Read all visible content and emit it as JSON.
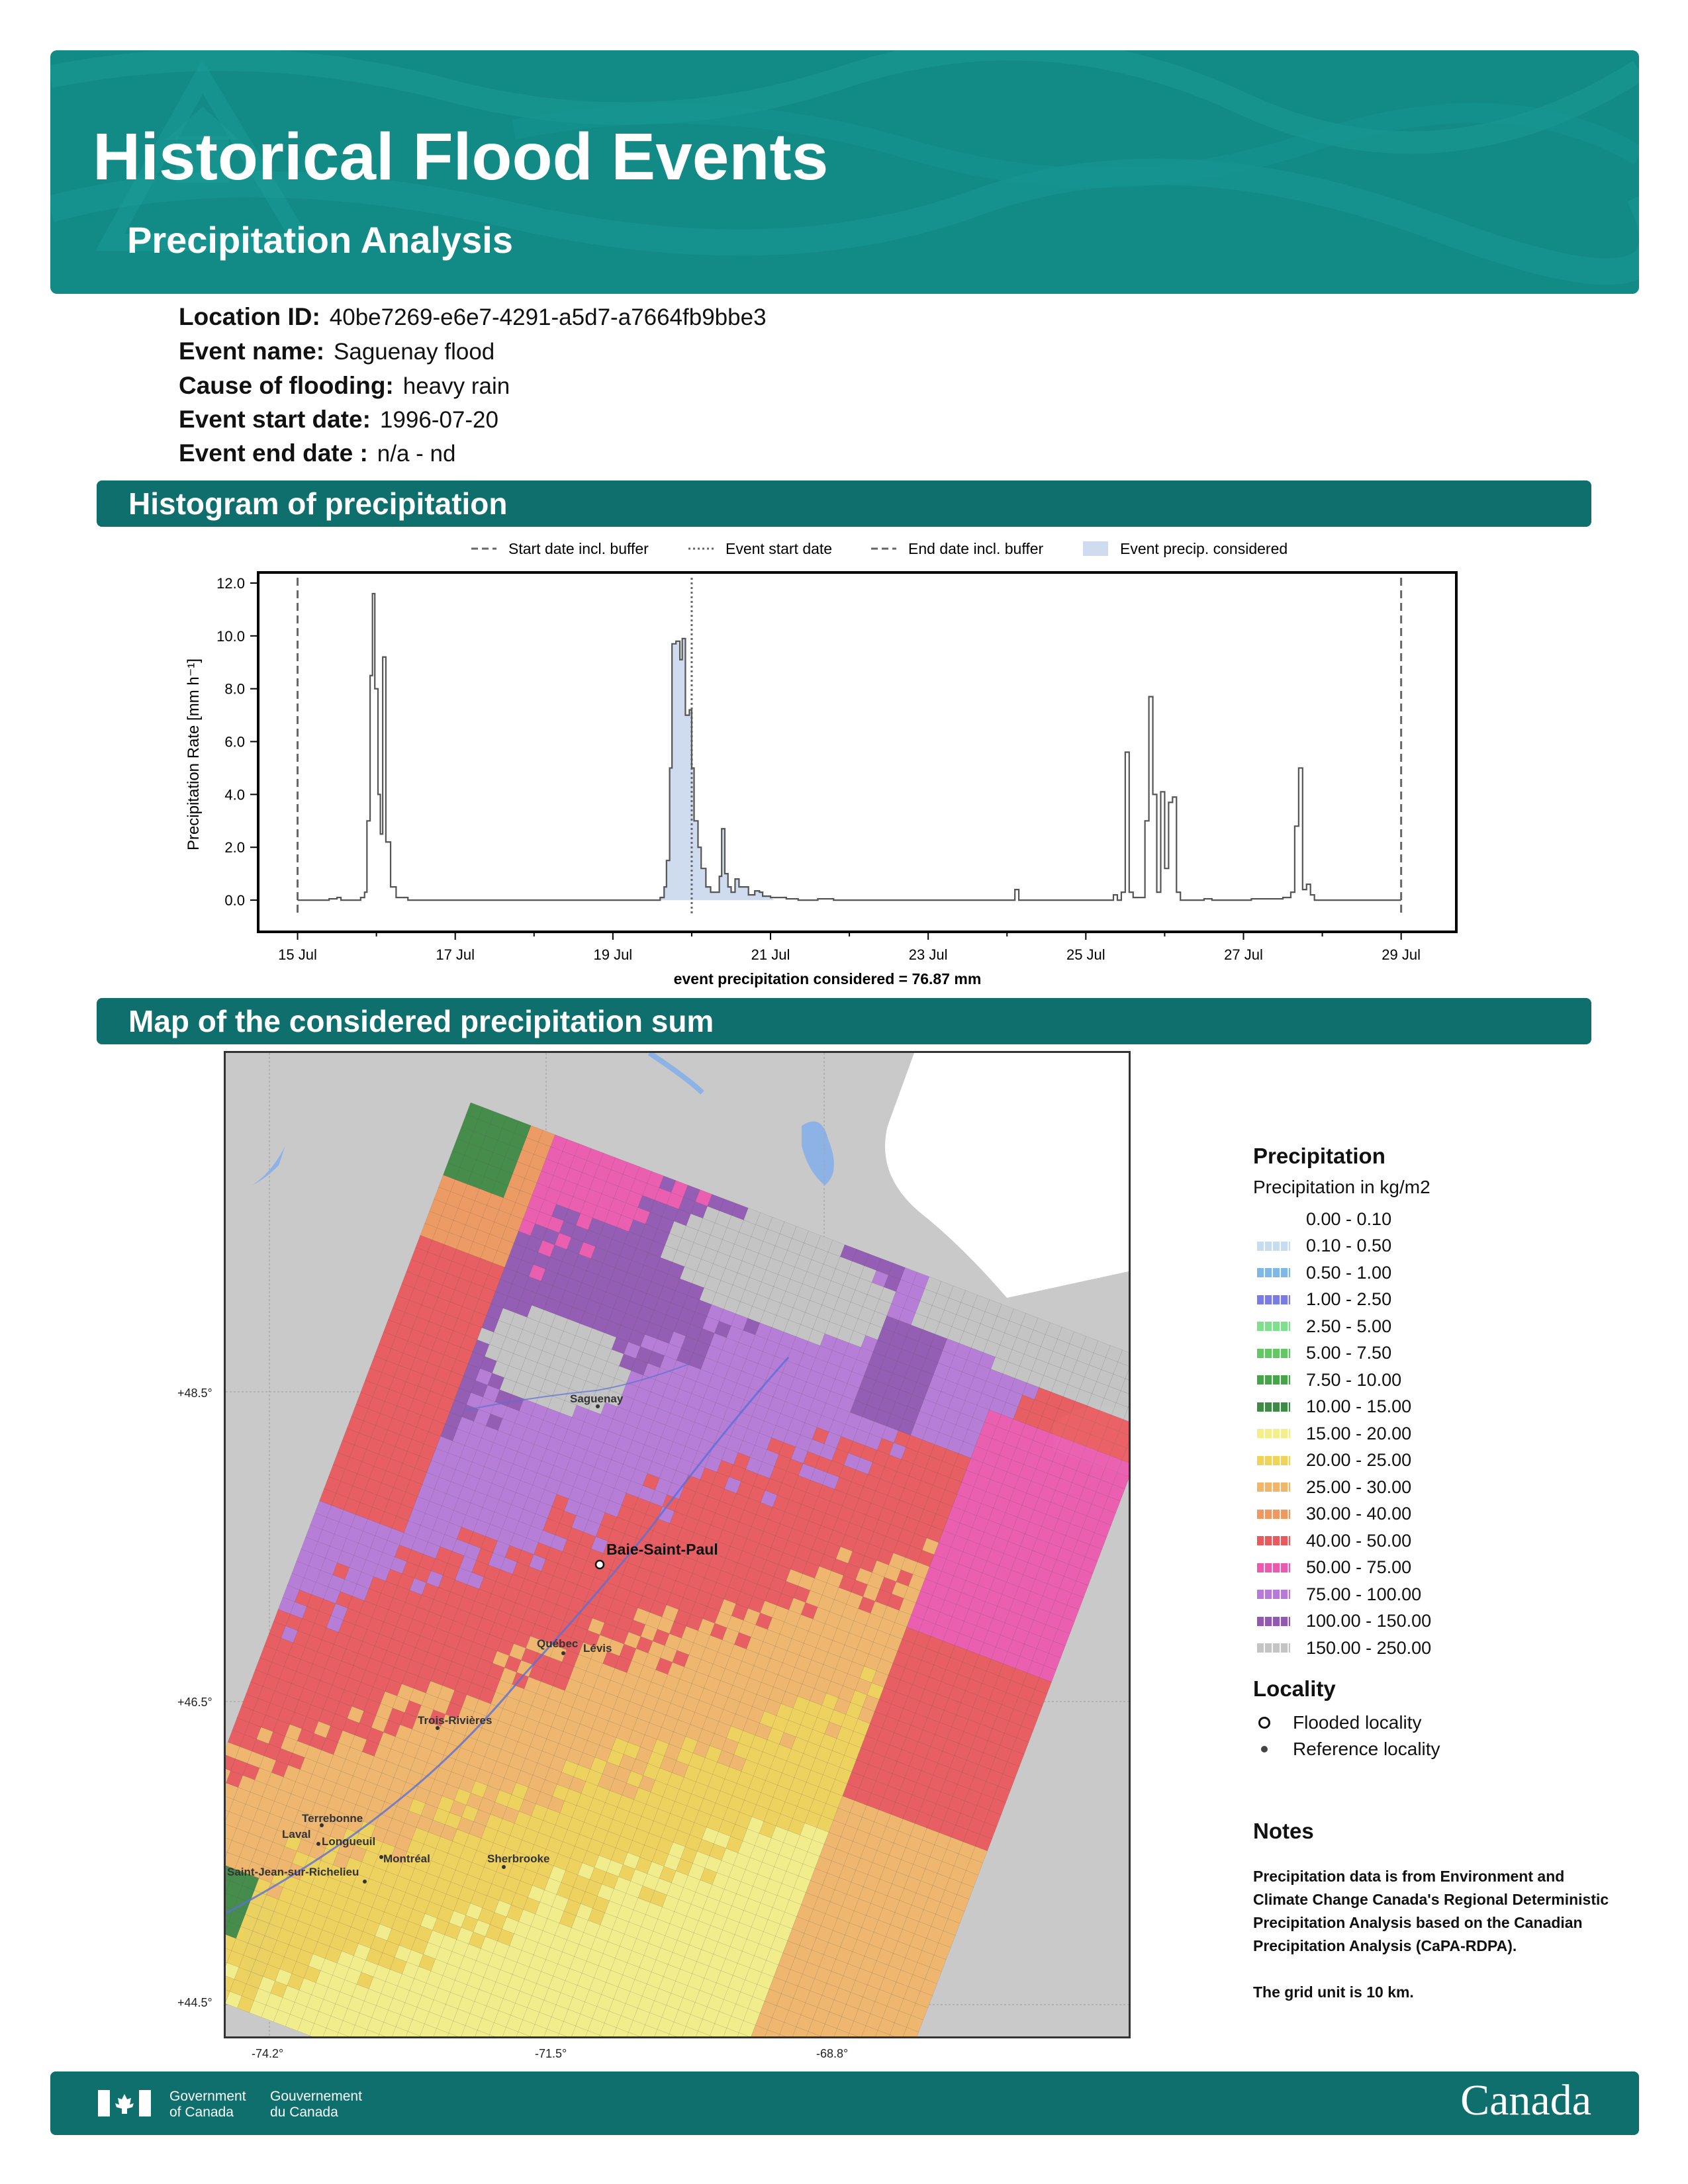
{
  "header": {
    "title": "Historical Flood Events",
    "subtitle": "Precipitation Analysis"
  },
  "event_info": [
    {
      "label": "Location ID:",
      "value": "40be7269-e6e7-4291-a5d7-a7664fb9bbe3"
    },
    {
      "label": "Event name:",
      "value": "Saguenay flood"
    },
    {
      "label": "Cause of flooding:",
      "value": "heavy rain"
    },
    {
      "label": "Event start date:",
      "value": "1996-07-20"
    },
    {
      "label": "Event end date :",
      "value": "n/a - nd"
    }
  ],
  "sections": {
    "histogram": "Histogram of precipitation",
    "map": "Map of the considered precipitation sum"
  },
  "chart_data": {
    "type": "area",
    "ylabel": "Precipitation Rate [mm h⁻¹]",
    "xlabel": "event precipitation considered = 76.87 mm",
    "ylim": [
      -1.2,
      12.4
    ],
    "y_ticks": [
      "0.0",
      "2.0",
      "4.0",
      "6.0",
      "8.0",
      "10.0",
      "12.0"
    ],
    "x_ticks": [
      "15 Jul",
      "17 Jul",
      "19 Jul",
      "21 Jul",
      "23 Jul",
      "25 Jul",
      "27 Jul",
      "29 Jul"
    ],
    "x_range_days": [
      14.5,
      29.7
    ],
    "legend": {
      "placement": "top",
      "entries": [
        "Start date incl. buffer",
        "Event start date",
        "End date incl. buffer",
        "Event precip. considered"
      ]
    },
    "markers": {
      "start_buffer": "1996-07-15",
      "event_start": "1996-07-20",
      "end_buffer": "1996-07-29"
    },
    "series": [
      {
        "values_by_day": [
          [
            15.0,
            0.0
          ],
          [
            15.4,
            0.05
          ],
          [
            15.5,
            0.1
          ],
          [
            15.55,
            0.0
          ],
          [
            15.8,
            0.1
          ],
          [
            15.85,
            0.3
          ],
          [
            15.88,
            3.0
          ],
          [
            15.92,
            8.5
          ],
          [
            15.95,
            11.6
          ],
          [
            15.98,
            8.0
          ],
          [
            16.02,
            4.0
          ],
          [
            16.05,
            2.5
          ],
          [
            16.08,
            9.2
          ],
          [
            16.12,
            2.2
          ],
          [
            16.18,
            0.5
          ],
          [
            16.25,
            0.1
          ],
          [
            16.4,
            0.0
          ],
          [
            19.6,
            0.1
          ],
          [
            19.65,
            0.5
          ],
          [
            19.68,
            1.5
          ],
          [
            19.72,
            5.0
          ],
          [
            19.75,
            9.7
          ],
          [
            19.8,
            9.8
          ],
          [
            19.85,
            9.1
          ],
          [
            19.88,
            9.9
          ],
          [
            19.92,
            7.0
          ],
          [
            19.97,
            7.2
          ],
          [
            20.0,
            5.0
          ],
          [
            20.03,
            3.0
          ],
          [
            20.08,
            2.0
          ],
          [
            20.12,
            1.2
          ],
          [
            20.18,
            0.5
          ],
          [
            20.24,
            0.3
          ],
          [
            20.3,
            0.3
          ],
          [
            20.35,
            0.9
          ],
          [
            20.38,
            2.7
          ],
          [
            20.42,
            1.0
          ],
          [
            20.46,
            0.5
          ],
          [
            20.5,
            0.3
          ],
          [
            20.55,
            0.8
          ],
          [
            20.6,
            0.5
          ],
          [
            20.66,
            0.5
          ],
          [
            20.72,
            0.2
          ],
          [
            20.8,
            0.35
          ],
          [
            20.86,
            0.3
          ],
          [
            20.9,
            0.15
          ],
          [
            21.0,
            0.1
          ],
          [
            21.2,
            0.05
          ],
          [
            21.35,
            0.0
          ],
          [
            21.6,
            0.05
          ],
          [
            21.8,
            0.0
          ],
          [
            22.0,
            0.0
          ],
          [
            24.05,
            0.0
          ],
          [
            24.1,
            0.4
          ],
          [
            24.15,
            0.0
          ],
          [
            25.3,
            0.0
          ],
          [
            25.35,
            0.2
          ],
          [
            25.4,
            0.0
          ],
          [
            25.45,
            0.3
          ],
          [
            25.5,
            5.6
          ],
          [
            25.55,
            0.3
          ],
          [
            25.6,
            0.1
          ],
          [
            25.7,
            0.1
          ],
          [
            25.75,
            3.0
          ],
          [
            25.8,
            7.7
          ],
          [
            25.85,
            4.0
          ],
          [
            25.9,
            0.3
          ],
          [
            25.95,
            4.1
          ],
          [
            26.0,
            1.2
          ],
          [
            26.05,
            3.7
          ],
          [
            26.1,
            3.9
          ],
          [
            26.15,
            0.3
          ],
          [
            26.2,
            0.0
          ],
          [
            26.4,
            0.0
          ],
          [
            26.5,
            0.05
          ],
          [
            26.6,
            0.0
          ],
          [
            27.1,
            0.05
          ],
          [
            27.5,
            0.1
          ],
          [
            27.6,
            0.3
          ],
          [
            27.65,
            2.8
          ],
          [
            27.7,
            5.0
          ],
          [
            27.75,
            0.4
          ],
          [
            27.8,
            0.6
          ],
          [
            27.85,
            0.2
          ],
          [
            27.9,
            0.0
          ],
          [
            29.0,
            0.0
          ]
        ]
      }
    ],
    "considered_range_days": [
      19.6,
      21.05
    ]
  },
  "map": {
    "lat_ticks": [
      "+48.5°",
      "+46.5°",
      "+44.5°"
    ],
    "lon_ticks": [
      "-74.2°",
      "-71.5°",
      "-68.8°"
    ],
    "flooded_locality": "Baie-Saint-Paul",
    "reference_localities": [
      "Saguenay",
      "Québec",
      "Lévis",
      "Trois-Rivières",
      "Terrebonne",
      "Laval",
      "Longueuil",
      "Montréal",
      "Sherbrooke",
      "Saint-Jean-sur-Richelieu"
    ]
  },
  "legend": {
    "precip_title": "Precipitation",
    "precip_subtitle": "Precipitation in kg/m2",
    "classes": [
      {
        "range": "0.00 - 0.10",
        "color": "#ffffff"
      },
      {
        "range": "0.10 - 0.50",
        "color": "#c6ddf0"
      },
      {
        "range": "0.50 - 1.00",
        "color": "#7fb8e8"
      },
      {
        "range": "1.00 - 2.50",
        "color": "#7b7be8"
      },
      {
        "range": "2.50 - 5.00",
        "color": "#7ee08c"
      },
      {
        "range": "5.00 - 7.50",
        "color": "#62c864"
      },
      {
        "range": "7.50 - 10.00",
        "color": "#45a548"
      },
      {
        "range": "10.00 - 15.00",
        "color": "#3f8a46"
      },
      {
        "range": "15.00 - 20.00",
        "color": "#f4ef8a"
      },
      {
        "range": "20.00 - 25.00",
        "color": "#f1d35a"
      },
      {
        "range": "25.00 - 30.00",
        "color": "#f0b66a"
      },
      {
        "range": "30.00 - 40.00",
        "color": "#ef9960"
      },
      {
        "range": "40.00 - 50.00",
        "color": "#e9595e"
      },
      {
        "range": "50.00 - 75.00",
        "color": "#ec5aae"
      },
      {
        "range": "75.00 - 100.00",
        "color": "#b77ad8"
      },
      {
        "range": "100.00 - 150.00",
        "color": "#9259b3"
      },
      {
        "range": "150.00 - 250.00",
        "color": "#c4c4c4"
      }
    ],
    "locality_title": "Locality",
    "locality_items": [
      {
        "symbol": "open-circle",
        "label": "Flooded locality"
      },
      {
        "symbol": "dot",
        "label": "Reference locality"
      }
    ]
  },
  "notes": {
    "title": "Notes",
    "text": "Precipitation data is from Environment and Climate Change Canada's Regional Deterministic Precipitation Analysis based on the Canadian Precipitation Analysis (CaPA-RDPA).",
    "grid": "The grid unit is 10 km."
  },
  "footer": {
    "gov_en_1": "Government",
    "gov_en_2": "of Canada",
    "gov_fr_1": "Gouvernement",
    "gov_fr_2": "du Canada",
    "wordmark": "Canada"
  }
}
